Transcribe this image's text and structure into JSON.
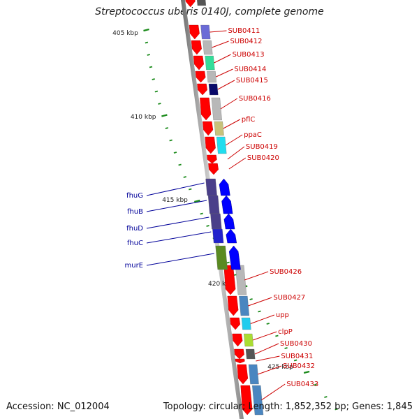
{
  "title": "Streptococcus uberis 0140J, complete genome",
  "accession": "Accession: NC_012004",
  "summary": "Topology: circular; Length: 1,852,352 bp; Genes: 1,845",
  "scale": {
    "unit": "kbp",
    "labels": [
      "405 kbp",
      "410 kbp",
      "415 kbp",
      "420 kbp",
      "425 kbp"
    ]
  },
  "colors": {
    "backbone": "#8a8a8a",
    "forward_gene": "#ff0000",
    "reverse_gene": "#0000ff",
    "forward_label": "#cc0000",
    "reverse_label": "#000099",
    "tick": "#1a8a1a"
  },
  "genes_forward": [
    {
      "name": "SUB0411",
      "cog_color": "#6b6bd6"
    },
    {
      "name": "SUB0412",
      "cog_color": "#b8b8b8"
    },
    {
      "name": "SUB0413",
      "cog_color": "#33dd99"
    },
    {
      "name": "SUB0414",
      "cog_color": "#b8b8b8"
    },
    {
      "name": "SUB0415",
      "cog_color": "#0a0a6a"
    },
    {
      "name": "SUB0416",
      "cog_color": "#b8b8b8"
    },
    {
      "name": "pflC",
      "cog_color": "#c8c27a"
    },
    {
      "name": "ppaC",
      "cog_color": "#22ddee"
    },
    {
      "name": "SUB0419",
      "cog_color": ""
    },
    {
      "name": "SUB0420",
      "cog_color": ""
    },
    {
      "name": "SUB0426",
      "cog_color": "#b8b8b8"
    },
    {
      "name": "SUB0427",
      "cog_color": "#4a86c0"
    },
    {
      "name": "upp",
      "cog_color": "#22ccee"
    },
    {
      "name": "clpP",
      "cog_color": "#aadd33"
    },
    {
      "name": "SUB0430",
      "cog_color": "#555555"
    },
    {
      "name": "SUB0431",
      "cog_color": ""
    },
    {
      "name": "SUB0432",
      "cog_color": "#4a86c0"
    },
    {
      "name": "SUB0433",
      "cog_color": "#4a86c0"
    }
  ],
  "genes_reverse": [
    {
      "name": "fhuG",
      "cog_color": "#4a3f8a"
    },
    {
      "name": "fhuB",
      "cog_color": "#4a3f8a"
    },
    {
      "name": "fhuD",
      "cog_color": "#4a3f8a"
    },
    {
      "name": "fhuC",
      "cog_color": "#2222cc"
    },
    {
      "name": "murE",
      "cog_color": "#5a8a22"
    }
  ]
}
